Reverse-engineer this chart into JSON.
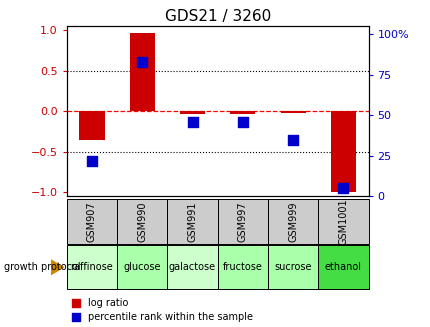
{
  "title": "GDS21 / 3260",
  "samples": [
    "GSM907",
    "GSM990",
    "GSM991",
    "GSM997",
    "GSM999",
    "GSM1001"
  ],
  "protocols": [
    "raffinose",
    "glucose",
    "galactose",
    "fructose",
    "sucrose",
    "ethanol"
  ],
  "log_ratios": [
    -0.35,
    0.97,
    -0.04,
    -0.03,
    -0.02,
    -1.0
  ],
  "percentile_ranks": [
    22,
    83,
    46,
    46,
    35,
    5
  ],
  "bar_color": "#cc0000",
  "dot_color": "#0000cc",
  "protocol_colors": [
    "#ccffcc",
    "#aaffaa",
    "#ccffcc",
    "#aaffaa",
    "#aaffaa",
    "#44dd44"
  ],
  "sample_bg_color": "#cccccc",
  "ylim_left": [
    -1.05,
    1.05
  ],
  "ylim_right": [
    0,
    105
  ],
  "yticks_left": [
    -1,
    -0.5,
    0,
    0.5,
    1
  ],
  "yticks_right": [
    0,
    25,
    50,
    75,
    100
  ],
  "left_tick_color": "#cc0000",
  "right_tick_color": "#0000cc",
  "bar_width": 0.5,
  "dot_size": 50,
  "title_fontsize": 11,
  "tick_fontsize": 8,
  "sample_fontsize": 7,
  "proto_fontsize": 7,
  "legend_fontsize": 7
}
